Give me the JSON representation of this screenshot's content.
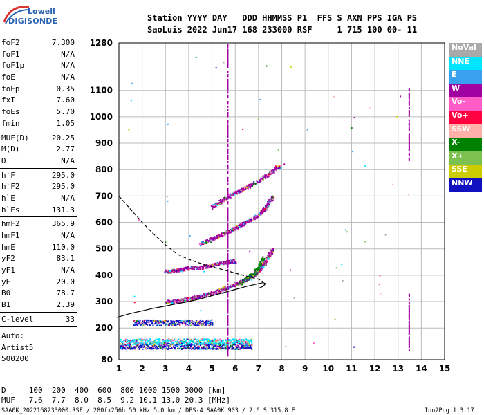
{
  "logo": {
    "line1": "Lowell",
    "line2": "DIGISONDE"
  },
  "header": {
    "row1": "Station YYYY DAY   DDD HHMMSS P1  FFS S AXN PPS IGA PS",
    "row2": "SaoLuis 2022 Jun17 168 233000 RSF     1 715 100 00- 11"
  },
  "params": {
    "group1": [
      {
        "label": "foF2",
        "value": "7.300"
      },
      {
        "label": "foF1",
        "value": "N/A"
      },
      {
        "label": "foF1p",
        "value": "N/A"
      },
      {
        "label": "foE",
        "value": "N/A"
      },
      {
        "label": "foEp",
        "value": "0.35"
      },
      {
        "label": "fxI",
        "value": "7.60"
      },
      {
        "label": "foEs",
        "value": "5.70"
      },
      {
        "label": "fmin",
        "value": "1.05"
      }
    ],
    "group2": [
      {
        "label": "MUF(D)",
        "value": "20.25"
      },
      {
        "label": "M(D)",
        "value": "2.77"
      },
      {
        "label": "D",
        "value": "N/A"
      }
    ],
    "group3": [
      {
        "label": "h`F",
        "value": "295.0"
      },
      {
        "label": "h`F2",
        "value": "295.0"
      },
      {
        "label": "h`E",
        "value": "N/A"
      },
      {
        "label": "h`Es",
        "value": "131.3"
      }
    ],
    "group4": [
      {
        "label": "hmF2",
        "value": "365.9"
      },
      {
        "label": "hmF1",
        "value": "N/A"
      },
      {
        "label": "hmE",
        "value": "110.0"
      },
      {
        "label": "yF2",
        "value": "83.1"
      },
      {
        "label": "yF1",
        "value": "N/A"
      },
      {
        "label": "yE",
        "value": "20.0"
      },
      {
        "label": "B0",
        "value": "78.7"
      },
      {
        "label": "B1",
        "value": "2.39"
      }
    ],
    "group5": [
      {
        "label": "C-level",
        "value": "33"
      }
    ]
  },
  "auto": {
    "line1": "Auto:",
    "line2": "Artist5",
    "line3": "500200"
  },
  "legend": [
    {
      "label": "NoVal",
      "color": "#a9a9a9"
    },
    {
      "label": "NNE",
      "color": "#00e5ff"
    },
    {
      "label": "E",
      "color": "#3aa0f0"
    },
    {
      "label": "W",
      "color": "#a000a0"
    },
    {
      "label": "Vo-",
      "color": "#ff5cc8"
    },
    {
      "label": "Vo+",
      "color": "#ff0040"
    },
    {
      "label": "SSW",
      "color": "#ffb0a8"
    },
    {
      "label": "X-",
      "color": "#008000"
    },
    {
      "label": "X+",
      "color": "#7cc050"
    },
    {
      "label": "SSE",
      "color": "#cccc00"
    },
    {
      "label": "NNW",
      "color": "#1010c0"
    }
  ],
  "footer": {
    "line1": "D     100  200  400  600  800 1000 1500 3000 [km]",
    "line2": "MUF   7.6  7.7  8.0  8.5  9.2 10.1 13.0 20.3 [MHz]",
    "line3": "SAA0K_2022168233000.RSF / 280fx256h 50 kHz 5.0 km / DPS-4 SAA0K 903 / 2.6 S 315.8 E",
    "version": "Ion2Png 1.3.17"
  },
  "chart_data": {
    "type": "scatter",
    "xlim": [
      1,
      15
    ],
    "ylim": [
      80,
      1280
    ],
    "xticks": [
      1,
      2,
      3,
      4,
      5,
      6,
      7,
      8,
      9,
      10,
      11,
      12,
      13,
      14,
      15
    ],
    "yticks": [
      80,
      200,
      300,
      400,
      500,
      600,
      700,
      800,
      900,
      1000,
      1100,
      1280
    ],
    "grid": true,
    "legend_position": "right",
    "profile_curve": {
      "x": [
        0.9,
        1.5,
        2.0,
        2.5,
        3.0,
        3.5,
        4.0,
        4.5,
        5.0,
        5.5,
        6.0,
        6.5,
        7.0,
        7.2,
        7.3,
        7.2,
        7.0
      ],
      "y": [
        240,
        255,
        265,
        275,
        283,
        292,
        300,
        310,
        322,
        334,
        346,
        358,
        368,
        372,
        368,
        358,
        350
      ]
    },
    "topside_curve": {
      "x": [
        1.0,
        1.5,
        2.0,
        2.5,
        3.0,
        3.5,
        4.0,
        4.5,
        5.0,
        5.5,
        6.0,
        6.5,
        7.0,
        7.2
      ],
      "y": [
        700,
        650,
        600,
        555,
        515,
        480,
        460,
        445,
        432,
        420,
        408,
        396,
        385,
        375
      ]
    },
    "traces": [
      {
        "name": "O-trace 1st hop",
        "color": "#a000a0",
        "x": [
          3.0,
          3.5,
          4.0,
          4.5,
          5.0,
          5.5,
          6.0,
          6.5,
          6.9,
          7.2,
          7.4,
          7.6
        ],
        "y": [
          300,
          304,
          312,
          322,
          334,
          350,
          368,
          388,
          410,
          440,
          470,
          500
        ]
      },
      {
        "name": "X-trace",
        "color": "#008000",
        "x": [
          6.2,
          6.5,
          6.8,
          7.0,
          7.2
        ],
        "y": [
          372,
          390,
          410,
          430,
          470
        ]
      },
      {
        "name": "2nd hop",
        "color": "#a000a0",
        "x": [
          4.5,
          5.0,
          5.5,
          6.0,
          6.5,
          7.0,
          7.3,
          7.6
        ],
        "y": [
          520,
          540,
          560,
          580,
          605,
          630,
          660,
          700
        ]
      },
      {
        "name": "3rd hop",
        "color": "#a000a0",
        "x": [
          5.0,
          5.5,
          6.0,
          6.5,
          7.0,
          7.5,
          7.9
        ],
        "y": [
          660,
          690,
          715,
          735,
          760,
          790,
          815
        ]
      },
      {
        "name": "weak trace",
        "color": "#a000a0",
        "x": [
          3.0,
          3.5,
          4.0,
          4.5,
          5.0,
          5.5,
          6.0
        ],
        "y": [
          415,
          420,
          428,
          430,
          440,
          450,
          455
        ]
      }
    ],
    "es_layers": [
      {
        "x0": 1.05,
        "x1": 6.7,
        "y": 133,
        "color": "#1010c0"
      },
      {
        "x0": 1.05,
        "x1": 6.7,
        "y": 150,
        "color": "#00e5ff"
      },
      {
        "x0": 1.6,
        "x1": 5.0,
        "y": 222,
        "color": "#1010c0"
      }
    ],
    "vertical_strips": [
      {
        "x": 13.45,
        "y0": 840,
        "y1": 1110,
        "color": "#a000a0"
      },
      {
        "x": 13.45,
        "y0": 120,
        "y1": 340,
        "color": "#a000a0"
      },
      {
        "x": 5.65,
        "y0": 100,
        "y1": 1280,
        "color": "#a000a0"
      }
    ]
  }
}
